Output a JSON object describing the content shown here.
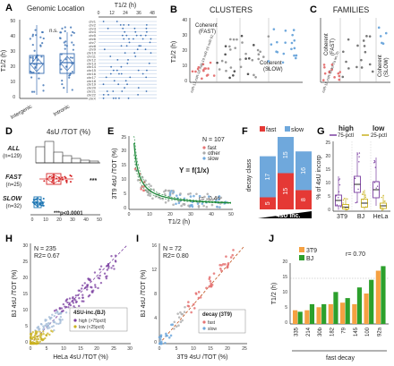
{
  "figure": {
    "panels": [
      "A",
      "B",
      "C",
      "D",
      "E",
      "F",
      "G",
      "H",
      "I",
      "J"
    ]
  },
  "panelA": {
    "title": "Genomic Location",
    "ylabel": "T1/2 (h)",
    "categories": [
      "Intergenic",
      "Intronic"
    ],
    "ns": "n.s.",
    "yticks": [
      "0",
      "10",
      "20",
      "30",
      "40",
      "50"
    ],
    "right_title": "T1/2 (h)",
    "right_ticks": [
      "0",
      "12",
      "24",
      "36",
      "48"
    ],
    "chromosomes": [
      "chr1",
      "chr2",
      "chr3",
      "chr4",
      "chr5",
      "chr6",
      "chr7",
      "chr8",
      "chr9",
      "chr10",
      "chr11",
      "chr12",
      "chr13",
      "chr14",
      "chr15",
      "chr16",
      "chr17",
      "chr18",
      "chr19",
      "chr20",
      "chr21",
      "chr22",
      "chrX"
    ]
  },
  "panelB": {
    "title": "CLUSTERS",
    "ylabel": "T1/2 (h)",
    "yticks": [
      "0",
      "10",
      "20",
      "30",
      "40"
    ],
    "label_fast": "Coherent (FAST)",
    "label_slow": "Coherent (SLOW)"
  },
  "panelC": {
    "title": "FAMILIES",
    "label_fast": "Coherent (FAST)",
    "label_slow": "Coherent (SLOW)"
  },
  "panelD": {
    "title": "4sU /TOT  (%)",
    "groups": [
      {
        "name": "ALL",
        "n": "(n=129)"
      },
      {
        "name": "FAST",
        "n": "(n=25)"
      },
      {
        "name": "SLOW",
        "n": "(n=32)"
      }
    ],
    "xticks": [
      "0",
      "10",
      "20",
      "30",
      "40",
      "50"
    ],
    "sig": "***",
    "pvalue": "***p<0.0001"
  },
  "panelE": {
    "n": "N = 107",
    "legend": [
      "fast",
      "other",
      "slow"
    ],
    "equation": "Y = f(1/x)",
    "r": "r= -0.46",
    "ylabel": "3T9 4sU /TOT (%)",
    "xlabel": "T1/2 (h)",
    "yticks": [
      "0",
      "5",
      "10",
      "15",
      "20",
      "25"
    ],
    "xticks": [
      "0",
      "10",
      "20",
      "30",
      "40",
      "50"
    ]
  },
  "panelF": {
    "legend": [
      "fast",
      "slow"
    ],
    "ylabel": "decay class",
    "xlabel": "4sU inc.",
    "stack_values": [
      {
        "fast": 5,
        "slow": 17
      },
      {
        "fast": 15,
        "slow": 15
      },
      {
        "fast": 8,
        "slow": 16
      }
    ]
  },
  "panelG": {
    "high": "high",
    "high_sub": "75-pctl",
    "low": "low",
    "low_sub": "25-pctl",
    "ylabel": "% of 4sU incorp",
    "yticks": [
      "0",
      "5",
      "10",
      "15",
      "20",
      "25"
    ],
    "cells": [
      "3T9",
      "BJ",
      "HeLa"
    ]
  },
  "panelH": {
    "n": "N = 235",
    "r2": "R2= 0.67",
    "legend_title": "4SU-inc.(BJ)",
    "legend": [
      "high (>75pctl)",
      "low (<25pctl)"
    ],
    "ylabel": "BJ 4sU /TOT (%)",
    "xlabel": "HeLa 4sU /TOT (%)",
    "yticks": [
      "0",
      "5",
      "10",
      "15",
      "20",
      "25",
      "30"
    ],
    "xticks": [
      "0",
      "5",
      "10",
      "15",
      "20",
      "25",
      "30"
    ]
  },
  "panelI": {
    "n": "N = 72",
    "r2": "R2= 0.80",
    "legend_title": "decay (3T9)",
    "legend": [
      "fast",
      "slow"
    ],
    "ylabel": "BJ 4sU /TOT (%)",
    "xlabel": "3T9 4sU /TOT (%)",
    "yticks": [
      "0",
      "4",
      "8",
      "12",
      "16"
    ],
    "xticks": [
      "0",
      "5",
      "10",
      "15",
      "20",
      "25"
    ]
  },
  "panelJ": {
    "legend": [
      "3T9",
      "BJ"
    ],
    "r": "r= 0.70",
    "ylabel": "T1/2 (h)",
    "xlabel": "fast decay",
    "yticks": [
      "0",
      "5",
      "10",
      "15",
      "20"
    ],
    "colors": {
      "3T9": "#f5a142",
      "BJ": "#2ca02c"
    }
  },
  "chart_data": [
    {
      "panel": "J",
      "type": "bar",
      "categories": [
        "335",
        "214",
        "30b",
        "182",
        "79",
        "145",
        "100",
        "92a"
      ],
      "series": [
        {
          "name": "3T9",
          "values": [
            4.5,
            4.5,
            5.5,
            6.5,
            7.0,
            6.5,
            10.0,
            17.5
          ]
        },
        {
          "name": "BJ",
          "values": [
            4.0,
            6.5,
            6.5,
            10.5,
            8.5,
            12.0,
            14.5,
            19.0
          ]
        }
      ],
      "xlabel": "fast decay",
      "ylabel": "T1/2 (h)",
      "ylim": [
        0,
        20
      ]
    },
    {
      "panel": "F",
      "type": "bar",
      "categories": [
        "1",
        "2",
        "3"
      ],
      "series": [
        {
          "name": "fast",
          "values": [
            5,
            15,
            8
          ]
        },
        {
          "name": "slow",
          "values": [
            17,
            15,
            16
          ]
        }
      ],
      "ylabel": "decay class",
      "xlabel": "4sU inc."
    }
  ]
}
